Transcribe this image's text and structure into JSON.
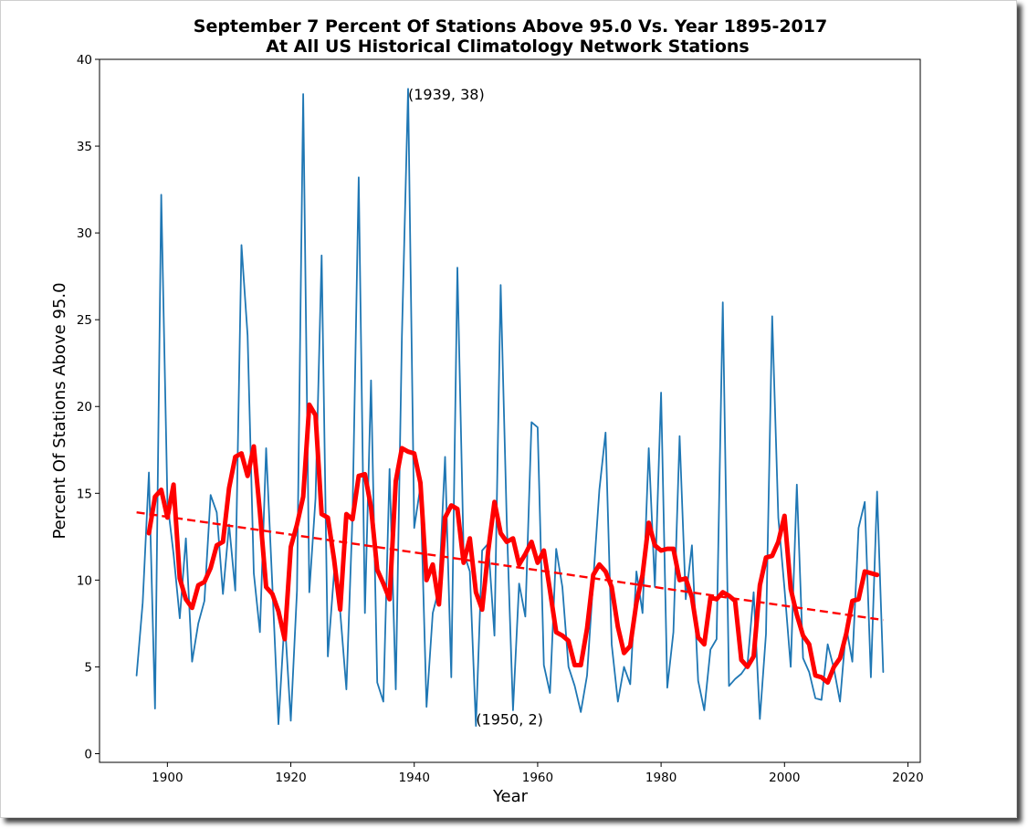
{
  "chart_data": {
    "type": "line",
    "title": "September 7 Percent Of Stations Above 95.0 Vs. Year 1895-2017",
    "subtitle": "At All US Historical Climatology Network Stations",
    "xlabel": "Year",
    "ylabel": "Percent Of Stations Above 95.0",
    "xlim": [
      1889,
      2022
    ],
    "ylim": [
      -0.5,
      40
    ],
    "xticks": [
      1900,
      1920,
      1940,
      1960,
      1980,
      2000,
      2020
    ],
    "yticks": [
      0,
      5,
      10,
      15,
      20,
      25,
      30,
      35,
      40
    ],
    "grid": false,
    "legend": "none",
    "annotations": [
      {
        "text": "(1939, 38)",
        "x": 1939,
        "y": 38
      },
      {
        "text": "(1950, 2)",
        "x": 1950,
        "y": 2
      }
    ],
    "series": [
      {
        "style": "thin line",
        "color": "#1f77b4",
        "x": [
          1895,
          1896,
          1897,
          1898,
          1899,
          1900,
          1901,
          1902,
          1903,
          1904,
          1905,
          1906,
          1907,
          1908,
          1909,
          1910,
          1911,
          1912,
          1913,
          1914,
          1915,
          1916,
          1917,
          1918,
          1919,
          1920,
          1921,
          1922,
          1923,
          1924,
          1925,
          1926,
          1927,
          1928,
          1929,
          1930,
          1931,
          1932,
          1933,
          1934,
          1935,
          1936,
          1937,
          1938,
          1939,
          1940,
          1941,
          1942,
          1943,
          1944,
          1945,
          1946,
          1947,
          1948,
          1949,
          1950,
          1951,
          1952,
          1953,
          1954,
          1955,
          1956,
          1957,
          1958,
          1959,
          1960,
          1961,
          1962,
          1963,
          1964,
          1965,
          1966,
          1967,
          1968,
          1969,
          1970,
          1971,
          1972,
          1973,
          1974,
          1975,
          1976,
          1977,
          1978,
          1979,
          1980,
          1981,
          1982,
          1983,
          1984,
          1985,
          1986,
          1987,
          1988,
          1989,
          1990,
          1991,
          1992,
          1993,
          1994,
          1995,
          1996,
          1997,
          1998,
          1999,
          2000,
          2001,
          2002,
          2003,
          2004,
          2005,
          2006,
          2007,
          2008,
          2009,
          2010,
          2011,
          2012,
          2013,
          2014,
          2015,
          2016
        ],
        "values": [
          4.5,
          8.7,
          16.2,
          2.6,
          32.2,
          14.5,
          11.5,
          7.8,
          12.4,
          5.3,
          7.5,
          8.8,
          14.9,
          13.9,
          9.2,
          13.2,
          9.4,
          29.3,
          24.1,
          10.4,
          7.0,
          17.6,
          9.7,
          1.7,
          7.8,
          1.9,
          9.4,
          38.0,
          9.3,
          14.7,
          28.7,
          5.6,
          10.4,
          8.2,
          3.7,
          13.7,
          33.2,
          8.1,
          21.5,
          4.1,
          3.0,
          16.4,
          3.7,
          24.0,
          38.3,
          13.0,
          15.4,
          2.7,
          8.1,
          9.5,
          17.1,
          4.4,
          28.0,
          11.6,
          10.5,
          1.6,
          11.7,
          12.1,
          6.8,
          27.0,
          13.3,
          2.5,
          9.8,
          7.9,
          19.1,
          18.8,
          5.1,
          3.5,
          11.8,
          9.6,
          5.0,
          3.9,
          2.4,
          4.5,
          10.0,
          15.2,
          18.5,
          6.3,
          3.0,
          5.0,
          4.0,
          10.5,
          8.1,
          17.6,
          9.6,
          20.8,
          3.8,
          7.0,
          18.3,
          8.9,
          12.0,
          4.2,
          2.5,
          6.0,
          6.6,
          26.0,
          3.9,
          4.3,
          4.6,
          5.1,
          9.3,
          2.0,
          6.9,
          25.2,
          13.6,
          9.5,
          5.0,
          15.5,
          5.5,
          4.7,
          3.2,
          3.1,
          6.3,
          4.9,
          3.0,
          7.3,
          5.3,
          13.0,
          14.5,
          4.4,
          15.1,
          4.7
        ]
      },
      {
        "style": "thick moving average",
        "color": "#ff0000",
        "x": [
          1897,
          1898,
          1899,
          1900,
          1901,
          1902,
          1903,
          1904,
          1905,
          1906,
          1907,
          1908,
          1909,
          1910,
          1911,
          1912,
          1913,
          1914,
          1915,
          1916,
          1917,
          1918,
          1919,
          1920,
          1921,
          1922,
          1923,
          1924,
          1925,
          1926,
          1927,
          1928,
          1929,
          1930,
          1931,
          1932,
          1933,
          1934,
          1935,
          1936,
          1937,
          1938,
          1939,
          1940,
          1941,
          1942,
          1943,
          1944,
          1945,
          1946,
          1947,
          1948,
          1949,
          1950,
          1951,
          1952,
          1953,
          1954,
          1955,
          1956,
          1957,
          1958,
          1959,
          1960,
          1961,
          1962,
          1963,
          1964,
          1965,
          1966,
          1967,
          1968,
          1969,
          1970,
          1971,
          1972,
          1973,
          1974,
          1975,
          1976,
          1977,
          1978,
          1979,
          1980,
          1981,
          1982,
          1983,
          1984,
          1985,
          1986,
          1987,
          1988,
          1989,
          1990,
          1991,
          1992,
          1993,
          1994,
          1995,
          1996,
          1997,
          1998,
          1999,
          2000,
          2001,
          2002,
          2003,
          2004,
          2005,
          2006,
          2007,
          2008,
          2009,
          2010,
          2011,
          2012,
          2013,
          2014,
          2015
        ],
        "values": [
          12.7,
          14.8,
          15.2,
          13.6,
          15.5,
          10.1,
          8.9,
          8.4,
          9.7,
          9.9,
          10.7,
          12.0,
          12.2,
          15.3,
          17.1,
          17.3,
          16.0,
          17.7,
          13.9,
          9.6,
          9.2,
          8.2,
          6.6,
          11.9,
          13.2,
          14.8,
          20.1,
          19.5,
          13.8,
          13.6,
          11.2,
          8.3,
          13.8,
          13.5,
          16.0,
          16.1,
          14.2,
          10.6,
          9.8,
          8.9,
          15.7,
          17.6,
          17.4,
          17.3,
          15.6,
          10.0,
          10.9,
          8.6,
          13.6,
          14.3,
          14.1,
          11.0,
          12.4,
          9.3,
          8.3,
          11.7,
          14.5,
          12.7,
          12.2,
          12.4,
          10.9,
          11.5,
          12.2,
          11.0,
          11.7,
          9.4,
          7.0,
          6.8,
          6.5,
          5.1,
          5.1,
          7.2,
          10.3,
          10.9,
          10.5,
          9.6,
          7.3,
          5.8,
          6.2,
          8.7,
          10.3,
          13.3,
          12.0,
          11.7,
          11.8,
          11.8,
          10.0,
          10.1,
          9.0,
          6.7,
          6.3,
          9.0,
          8.9,
          9.3,
          9.1,
          8.8,
          5.4,
          5.0,
          5.6,
          9.7,
          11.3,
          11.4,
          12.2,
          13.7,
          9.5,
          8.0,
          6.8,
          6.3,
          4.5,
          4.4,
          4.1,
          5.0,
          5.5,
          6.9,
          8.8,
          8.9,
          10.5,
          10.4,
          10.3
        ]
      },
      {
        "style": "dashed linear trend",
        "color": "#ff0000",
        "x": [
          1895,
          2016
        ],
        "values": [
          13.9,
          7.7
        ]
      }
    ]
  }
}
